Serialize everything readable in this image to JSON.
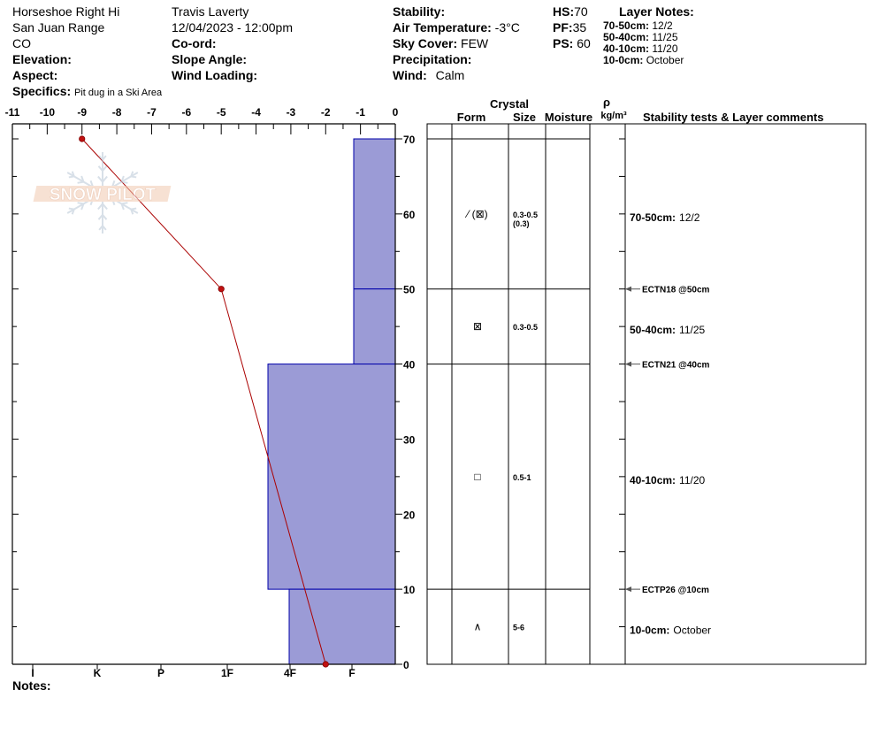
{
  "header": {
    "location_name": "Horseshoe Right Hi",
    "range": "San Juan Range",
    "state": "CO",
    "elevation_label": "Elevation:",
    "aspect_label": "Aspect:",
    "specifics_label": "Specifics:",
    "specifics_value": "Pit dug in a Ski Area",
    "observer": "Travis Laverty",
    "datetime": "12/04/2023 - 12:00pm",
    "coord_label": "Co-ord:",
    "slope_label": "Slope Angle:",
    "wind_loading_label": "Wind Loading:",
    "stability_label": "Stability:",
    "air_temp_label": "Air Temperature:",
    "air_temp_value": "-3°C",
    "sky_label": "Sky Cover:",
    "sky_value": "FEW",
    "precip_label": "Precipitation:",
    "wind_label": "Wind:",
    "wind_value": "Calm",
    "hs_label": "HS:",
    "hs_value": "70",
    "pf_label": "PF:",
    "pf_value": "35",
    "ps_label": "PS:",
    "ps_value": "60",
    "layer_notes_title": "Layer Notes:",
    "layer_notes": [
      {
        "range": "70-50cm:",
        "note": "12/2"
      },
      {
        "range": "50-40cm:",
        "note": "11/25"
      },
      {
        "range": "40-10cm:",
        "note": "11/20"
      },
      {
        "range": "10-0cm:",
        "note": "October"
      }
    ]
  },
  "notes_label": "Notes:",
  "logo_text": "SNOW PILOT",
  "columns": {
    "crystal": "Crystal",
    "form": "Form",
    "size": "Size",
    "moisture": "Moisture",
    "rho": "ρ",
    "density_unit": "kg/m³",
    "stability": "Stability tests & Layer comments"
  },
  "colors": {
    "hardness_fill": "#9b9bd6",
    "hardness_edge": "#0000aa",
    "temp_line": "#aa0000"
  },
  "chart_data": {
    "type": "line",
    "x_temp_ticks": [
      "-11",
      "-10",
      "-9",
      "-8",
      "-7",
      "-6",
      "-5",
      "-4",
      "-3",
      "-2",
      "-1",
      "0"
    ],
    "x_temp_range": [
      -11,
      0
    ],
    "y_ticks": [
      "0",
      "10",
      "20",
      "30",
      "40",
      "50",
      "60",
      "70"
    ],
    "y_range": [
      0,
      70
    ],
    "hardness_labels": [
      "I",
      "K",
      "P",
      "1F",
      "4F",
      "F"
    ],
    "temperature_profile": [
      {
        "depth": 70,
        "temp": -9
      },
      {
        "depth": 50,
        "temp": -5
      },
      {
        "depth": 0,
        "temp": -2
      }
    ],
    "hardness_layers": [
      {
        "top": 70,
        "bottom": 50,
        "hardness": "F"
      },
      {
        "top": 50,
        "bottom": 40,
        "hardness": "F"
      },
      {
        "top": 40,
        "bottom": 10,
        "hardness": "1F-"
      },
      {
        "top": 10,
        "bottom": 0,
        "hardness": "4F"
      }
    ],
    "crystal_rows": [
      {
        "depth": 60,
        "form": "⁄ (⊠)",
        "size": "0.3-0.5",
        "size2": "(0.3)"
      },
      {
        "depth": 45,
        "form": "⊠",
        "size": "0.3-0.5",
        "size2": ""
      },
      {
        "depth": 25,
        "form": "□",
        "size": "0.5-1",
        "size2": ""
      },
      {
        "depth": 5,
        "form": "∧",
        "size": "5-6",
        "size2": ""
      }
    ],
    "stability_tests": [
      {
        "depth": 50,
        "label": "ECTN18 @50cm"
      },
      {
        "depth": 40,
        "label": "ECTN21 @40cm"
      },
      {
        "depth": 10,
        "label": "ECTP26 @10cm"
      }
    ],
    "layer_comments": [
      {
        "depth": 60,
        "range": "70-50cm:",
        "note": "12/2"
      },
      {
        "depth": 45,
        "range": "50-40cm:",
        "note": "11/25"
      },
      {
        "depth": 25,
        "range": "40-10cm:",
        "note": "11/20"
      },
      {
        "depth": 5,
        "range": "10-0cm:",
        "note": "October"
      }
    ]
  }
}
